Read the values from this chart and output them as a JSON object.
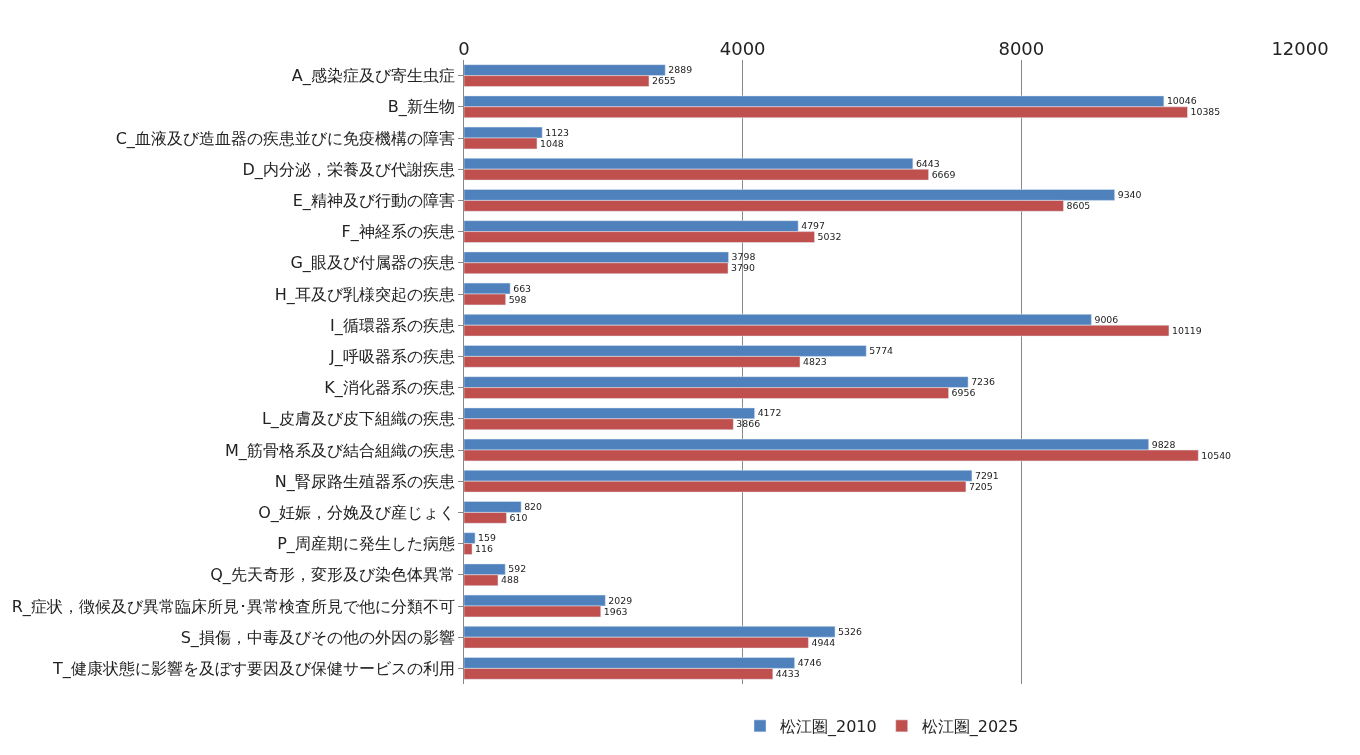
{
  "chart_data": {
    "type": "bar",
    "orientation": "horizontal",
    "categories": [
      "A_感染症及び寄生虫症",
      "B_新生物",
      "C_血液及び造血器の疾患並びに免疫機構の障害",
      "D_内分泌，栄養及び代謝疾患",
      "E_精神及び行動の障害",
      "F_神経系の疾患",
      "G_眼及び付属器の疾患",
      "H_耳及び乳様突起の疾患",
      "I_循環器系の疾患",
      "J_呼吸器系の疾患",
      "K_消化器系の疾患",
      "L_皮膚及び皮下組織の疾患",
      "M_筋骨格系及び結合組織の疾患",
      "N_腎尿路生殖器系の疾患",
      "O_妊娠，分娩及び産じょく",
      "P_周産期に発生した病態",
      "Q_先天奇形，変形及び染色体異常",
      "R_症状，徴候及び異常臨床所見･異常検査所見で他に分類不可",
      "S_損傷，中毒及びその他の外因の影響",
      "T_健康状態に影響を及ぼす要因及び保健サービスの利用"
    ],
    "series": [
      {
        "name": "松江圏_2010",
        "color": "#4f81bd",
        "values": [
          2889,
          10046,
          1123,
          6443,
          9340,
          4797,
          3798,
          663,
          9006,
          5774,
          7236,
          4172,
          9828,
          7291,
          820,
          159,
          592,
          2029,
          5326,
          4746
        ]
      },
      {
        "name": "松江圏_2025",
        "color": "#c0504d",
        "values": [
          2655,
          10385,
          1048,
          6669,
          8605,
          5032,
          3790,
          598,
          10119,
          4823,
          6956,
          3866,
          10540,
          7205,
          610,
          116,
          488,
          1963,
          4944,
          4433
        ]
      }
    ],
    "xlim": [
      0,
      12000
    ],
    "xticks": [
      0,
      4000,
      8000,
      12000
    ],
    "grid": "x",
    "legend": "bottom",
    "data_labels": true
  }
}
